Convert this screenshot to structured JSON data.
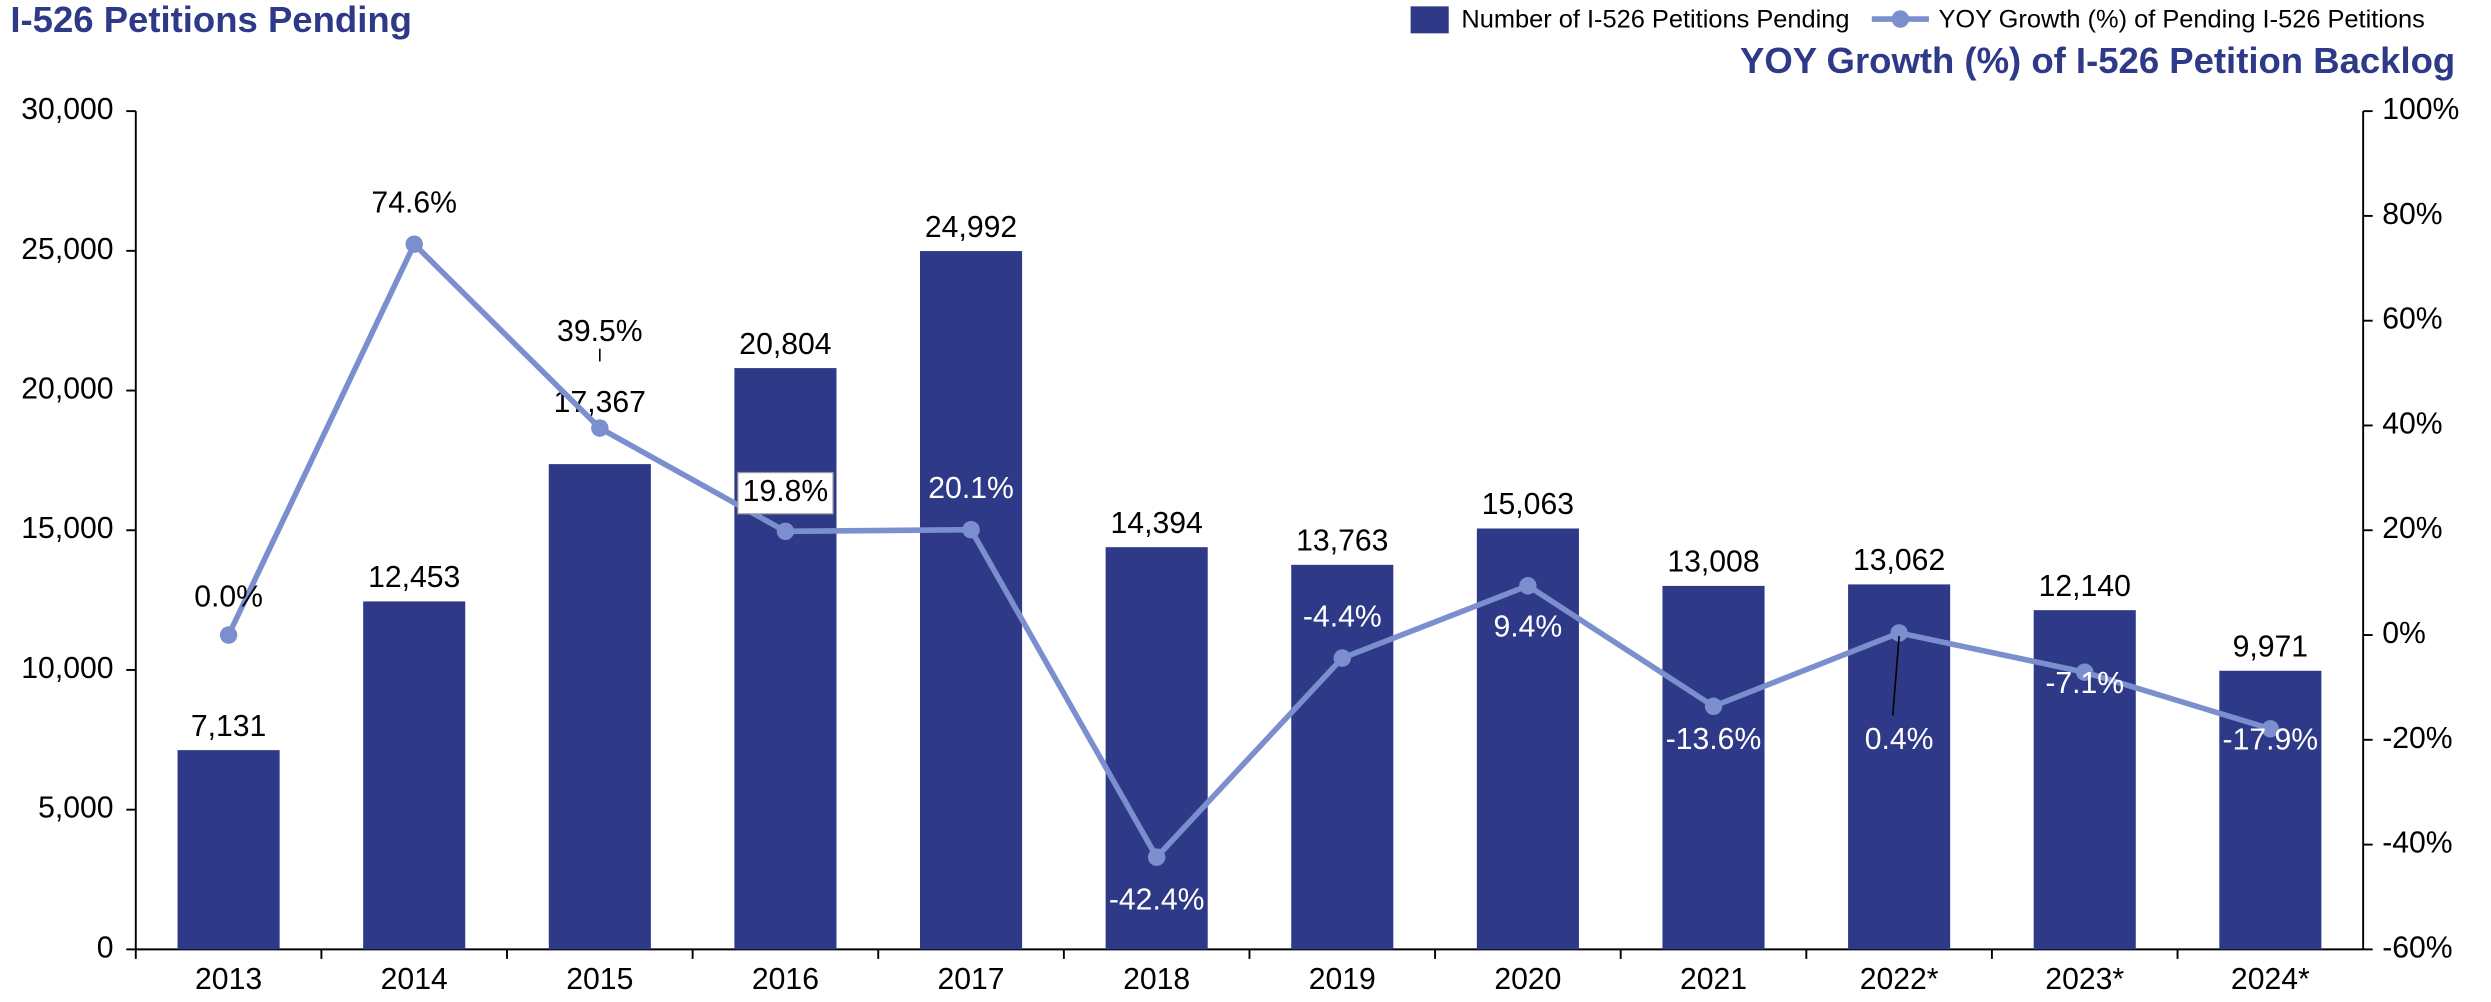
{
  "chart_data": {
    "type": "bar_line",
    "title": "I-526 Petitions Pending",
    "y2_title": "YOY Growth (%) of I-526 Petition Backlog",
    "categories": [
      "2013",
      "2014",
      "2015",
      "2016",
      "2017",
      "2018",
      "2019",
      "2020",
      "2021",
      "2022*",
      "2023*",
      "2024*"
    ],
    "series": [
      {
        "name": "Number of I-526 Petitions Pending",
        "type": "bar",
        "color": "#2e3a87",
        "values": [
          7131,
          12453,
          17367,
          20804,
          24992,
          14394,
          13763,
          15063,
          13008,
          13062,
          12140,
          9971
        ],
        "value_labels": [
          "7,131",
          "12,453",
          "17,367",
          "20,804",
          "24,992",
          "14,394",
          "13,763",
          "15,063",
          "13,008",
          "13,062",
          "12,140",
          "9,971"
        ]
      },
      {
        "name": "YOY Growth (%) of Pending I-526 Petitions",
        "type": "line",
        "axis": "y2",
        "color": "#7b8fcf",
        "values": [
          0.0,
          74.6,
          39.5,
          19.8,
          20.1,
          -42.4,
          -4.4,
          9.4,
          -13.6,
          0.4,
          -7.1,
          -17.9
        ],
        "value_labels": [
          "0.0%",
          "74.6%",
          "39.5%",
          "19.8%",
          "20.1%",
          "-42.4%",
          "-4.4%",
          "9.4%",
          "-13.6%",
          "0.4%",
          "-7.1%",
          "-17.9%"
        ]
      }
    ],
    "ylim": [
      0,
      30000
    ],
    "yticks": [
      0,
      {
        "value": 5000,
        "label": "5,000"
      },
      {
        "value": 10000,
        "label": "10,000"
      },
      {
        "value": 15000,
        "label": "15,000"
      },
      {
        "value": 20000,
        "label": "20,000"
      },
      {
        "value": 25000,
        "label": "25,000"
      },
      {
        "value": 30000,
        "label": "30,000"
      }
    ],
    "y2lim": [
      -60,
      100
    ],
    "y2ticks": [
      {
        "value": -60,
        "label": "-60%"
      },
      {
        "value": -40,
        "label": "-40%"
      },
      {
        "value": -20,
        "label": "-20%"
      },
      {
        "value": 0,
        "label": "0%"
      },
      {
        "value": 20,
        "label": "20%"
      },
      {
        "value": 40,
        "label": "40%"
      },
      {
        "value": 60,
        "label": "60%"
      },
      {
        "value": 80,
        "label": "80%"
      },
      {
        "value": 100,
        "label": "100%"
      }
    ],
    "legend": "top-right"
  }
}
